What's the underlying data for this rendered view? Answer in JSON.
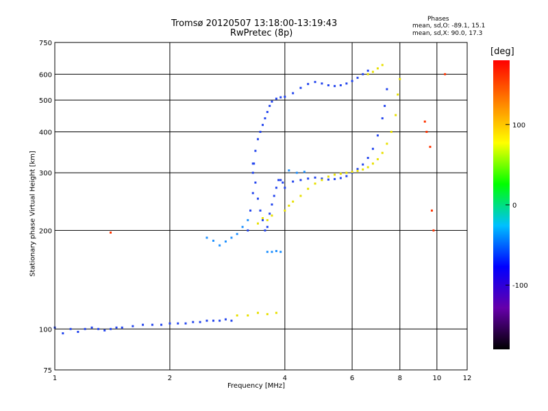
{
  "header": {
    "title_line1": "Tromsø 20120507 13:18:00-13:19:43",
    "title_line2": "RwPretec (8p)"
  },
  "phases_box": {
    "heading": "Phases",
    "line_o": "mean, sd,O: -89.1, 15.1",
    "line_x": "mean, sd,X:  90.0, 17.3"
  },
  "chart_data": {
    "type": "scatter",
    "title": "Tromsø 20120507 13:18:00-13:19:43",
    "subtitle": "RwPretec (8p)",
    "xlabel": "Frequency [MHz]",
    "ylabel": "Stationary phase Virtual Height [km]",
    "x_scale": "log",
    "y_scale": "log",
    "xlim": [
      1,
      12
    ],
    "ylim": [
      75,
      750
    ],
    "x_ticks": [
      1,
      2,
      4,
      6,
      8,
      10,
      12
    ],
    "x_tick_labels": [
      "1",
      "2",
      "4",
      "6",
      "8",
      "10",
      "12"
    ],
    "y_ticks": [
      75,
      100,
      200,
      300,
      400,
      500,
      600,
      750
    ],
    "y_tick_labels": [
      "75",
      "100",
      "200",
      "300",
      "400",
      "500",
      "600",
      "750"
    ],
    "grid": true,
    "colorbar": {
      "label": "[deg]",
      "range": [
        -180,
        180
      ],
      "ticks": [
        100,
        0,
        -100
      ],
      "tick_labels": [
        "100",
        "0",
        "-100"
      ],
      "colors": [
        "#000000",
        "#6600aa",
        "#0000ff",
        "#00c0ff",
        "#00ff00",
        "#ffff00",
        "#ff8000",
        "#ff0000"
      ]
    },
    "series": [
      {
        "phase": "O",
        "color": "#2244ee",
        "points": [
          [
            1.0,
            101
          ],
          [
            1.05,
            97
          ],
          [
            1.1,
            100
          ],
          [
            1.15,
            98
          ],
          [
            1.2,
            100
          ],
          [
            1.25,
            101
          ],
          [
            1.3,
            100
          ],
          [
            1.35,
            99
          ],
          [
            1.4,
            100
          ],
          [
            1.45,
            101
          ],
          [
            1.5,
            101
          ],
          [
            1.6,
            102
          ],
          [
            1.7,
            103
          ],
          [
            1.8,
            103
          ],
          [
            1.9,
            103
          ],
          [
            2.0,
            104
          ],
          [
            2.1,
            104
          ],
          [
            2.2,
            104
          ],
          [
            2.3,
            105
          ],
          [
            2.4,
            105
          ],
          [
            2.5,
            106
          ],
          [
            2.6,
            106
          ],
          [
            2.7,
            106
          ],
          [
            2.8,
            107
          ],
          [
            2.9,
            106
          ],
          [
            3.2,
            200
          ],
          [
            3.25,
            230
          ],
          [
            3.3,
            260
          ],
          [
            3.3,
            300
          ],
          [
            3.32,
            320
          ],
          [
            3.35,
            280
          ],
          [
            3.4,
            250
          ],
          [
            3.45,
            230
          ],
          [
            3.5,
            215
          ],
          [
            3.55,
            200
          ],
          [
            3.6,
            205
          ],
          [
            3.65,
            225
          ],
          [
            3.7,
            240
          ],
          [
            3.75,
            255
          ],
          [
            3.8,
            270
          ],
          [
            3.85,
            285
          ],
          [
            3.9,
            285
          ],
          [
            3.95,
            280
          ],
          [
            4.0,
            270
          ],
          [
            3.3,
            320
          ],
          [
            3.35,
            350
          ],
          [
            3.4,
            380
          ],
          [
            3.45,
            400
          ],
          [
            3.5,
            420
          ],
          [
            3.55,
            440
          ],
          [
            3.6,
            460
          ],
          [
            3.65,
            480
          ],
          [
            3.7,
            495
          ],
          [
            3.8,
            505
          ],
          [
            3.9,
            510
          ],
          [
            4.0,
            512
          ],
          [
            4.2,
            525
          ],
          [
            4.4,
            545
          ],
          [
            4.6,
            560
          ],
          [
            4.8,
            568
          ],
          [
            5.0,
            562
          ],
          [
            5.2,
            555
          ],
          [
            5.4,
            552
          ],
          [
            5.6,
            555
          ],
          [
            5.8,
            562
          ],
          [
            6.0,
            572
          ],
          [
            6.2,
            585
          ],
          [
            6.4,
            600
          ],
          [
            6.6,
            615
          ],
          [
            4.2,
            282
          ],
          [
            4.4,
            285
          ],
          [
            4.6,
            288
          ],
          [
            4.8,
            290
          ],
          [
            5.0,
            288
          ],
          [
            5.2,
            286
          ],
          [
            5.4,
            287
          ],
          [
            5.6,
            289
          ],
          [
            5.8,
            293
          ],
          [
            6.0,
            300
          ],
          [
            6.2,
            308
          ],
          [
            6.4,
            318
          ],
          [
            6.6,
            333
          ],
          [
            6.8,
            355
          ],
          [
            7.0,
            390
          ],
          [
            7.2,
            440
          ],
          [
            7.3,
            480
          ],
          [
            7.4,
            540
          ]
        ]
      },
      {
        "phase": "X",
        "color": "#e8e000",
        "points": [
          [
            3.4,
            210
          ],
          [
            3.5,
            218
          ],
          [
            3.6,
            215
          ],
          [
            3.7,
            222
          ],
          [
            4.0,
            230
          ],
          [
            4.1,
            238
          ],
          [
            4.2,
            245
          ],
          [
            4.4,
            255
          ],
          [
            4.6,
            268
          ],
          [
            4.8,
            278
          ],
          [
            5.0,
            285
          ],
          [
            5.2,
            292
          ],
          [
            5.4,
            296
          ],
          [
            5.6,
            298
          ],
          [
            5.8,
            300
          ],
          [
            6.0,
            302
          ],
          [
            6.2,
            304
          ],
          [
            6.4,
            307
          ],
          [
            6.6,
            312
          ],
          [
            6.8,
            320
          ],
          [
            7.0,
            330
          ],
          [
            7.2,
            345
          ],
          [
            7.4,
            368
          ],
          [
            7.6,
            400
          ],
          [
            7.8,
            450
          ],
          [
            7.9,
            520
          ],
          [
            8.0,
            580
          ],
          [
            6.6,
            600
          ],
          [
            6.8,
            610
          ],
          [
            7.0,
            625
          ],
          [
            7.2,
            640
          ],
          [
            3.0,
            110
          ],
          [
            3.2,
            110
          ],
          [
            3.4,
            112
          ],
          [
            3.6,
            111
          ],
          [
            3.8,
            112
          ]
        ]
      },
      {
        "phase": "O",
        "color": "#1e90ff",
        "points": [
          [
            2.5,
            190
          ],
          [
            2.6,
            186
          ],
          [
            2.7,
            180
          ],
          [
            2.8,
            185
          ],
          [
            2.9,
            190
          ],
          [
            3.0,
            195
          ],
          [
            3.1,
            205
          ],
          [
            3.2,
            215
          ],
          [
            3.6,
            172
          ],
          [
            3.7,
            172
          ],
          [
            3.8,
            173
          ],
          [
            3.9,
            172
          ],
          [
            4.1,
            305
          ],
          [
            4.3,
            300
          ],
          [
            4.5,
            302
          ]
        ]
      },
      {
        "phase": "scatter",
        "color": "#ff3300",
        "points": [
          [
            1.4,
            197
          ],
          [
            9.3,
            430
          ],
          [
            9.4,
            400
          ],
          [
            9.6,
            360
          ],
          [
            9.7,
            230
          ],
          [
            9.8,
            200
          ],
          [
            10.5,
            600
          ]
        ]
      }
    ]
  }
}
